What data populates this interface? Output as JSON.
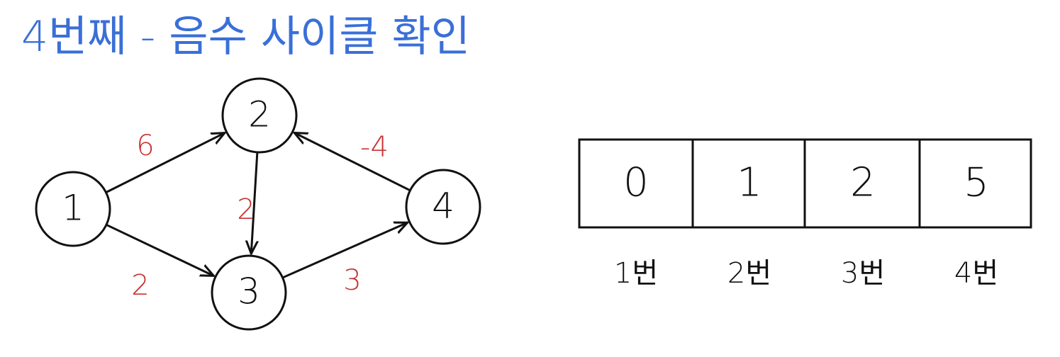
{
  "title": "4번째 - 음수 사이클 확인",
  "colors": {
    "title": "#3a6fd8",
    "weight": "#c83232",
    "stroke": "#111111"
  },
  "graph": {
    "nodes": [
      {
        "id": "1",
        "label": "1"
      },
      {
        "id": "2",
        "label": "2"
      },
      {
        "id": "3",
        "label": "3"
      },
      {
        "id": "4",
        "label": "4"
      }
    ],
    "edges": [
      {
        "from": "1",
        "to": "2",
        "weight": "6"
      },
      {
        "from": "1",
        "to": "3",
        "weight": "2"
      },
      {
        "from": "2",
        "to": "3",
        "weight": "2"
      },
      {
        "from": "3",
        "to": "4",
        "weight": "3"
      },
      {
        "from": "4",
        "to": "2",
        "weight": "-4"
      }
    ]
  },
  "distance_table": {
    "cells": [
      {
        "value": "0",
        "caption": "1번"
      },
      {
        "value": "1",
        "caption": "2번"
      },
      {
        "value": "2",
        "caption": "3번"
      },
      {
        "value": "5",
        "caption": "4번"
      }
    ]
  }
}
